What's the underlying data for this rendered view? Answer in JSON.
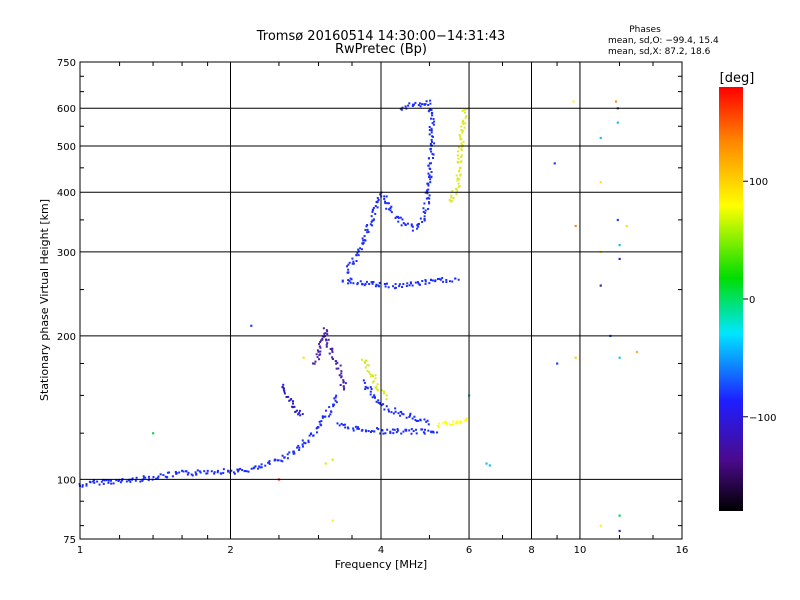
{
  "chart_data": {
    "type": "scatter",
    "title": "Tromsø 20160514 14:30:00−14:31:43",
    "subtitle": "RwPretec (Bp)",
    "xlabel": "Frequency [MHz]",
    "ylabel": "Stationary phase Virtual Height [km]",
    "x_scale": "log",
    "y_scale": "log",
    "xlim": [
      1,
      16
    ],
    "ylim": [
      75,
      750
    ],
    "x_ticks": [
      1,
      2,
      4,
      6,
      8,
      10,
      16
    ],
    "x_tick_labels": [
      "1",
      "2",
      "4",
      "6",
      "8",
      "10",
      "16"
    ],
    "y_ticks": [
      75,
      100,
      200,
      300,
      400,
      500,
      600,
      750
    ],
    "y_tick_labels": [
      "75",
      "100",
      "200",
      "300",
      "400",
      "500",
      "600",
      "750"
    ],
    "grid": true,
    "phases": {
      "title": "Phases",
      "line_o": "mean, sd,O: −99.4, 15.4",
      "line_x": "mean, sd,X:  87.2, 18.6"
    },
    "colorbar": {
      "label": "[deg]",
      "range": [
        -180,
        180
      ],
      "ticks": [
        100,
        0,
        -100
      ],
      "tick_labels": [
        "100",
        "0",
        "−100"
      ]
    },
    "traces": [
      {
        "color": "#1a2cff",
        "points": [
          [
            1.0,
            97
          ],
          [
            1.05,
            98
          ],
          [
            1.1,
            99
          ],
          [
            1.2,
            99
          ],
          [
            1.3,
            100
          ],
          [
            1.4,
            101
          ],
          [
            1.5,
            102
          ],
          [
            1.6,
            103
          ],
          [
            1.7,
            103
          ],
          [
            1.8,
            104
          ],
          [
            1.9,
            104
          ],
          [
            2.0,
            104
          ],
          [
            2.1,
            104
          ],
          [
            2.2,
            105
          ],
          [
            2.3,
            106
          ],
          [
            2.4,
            108
          ],
          [
            2.5,
            110
          ],
          [
            2.6,
            112
          ],
          [
            2.7,
            115
          ],
          [
            2.8,
            119
          ],
          [
            2.9,
            123
          ],
          [
            3.0,
            128
          ],
          [
            3.05,
            132
          ],
          [
            3.1,
            136
          ],
          [
            3.2,
            142
          ],
          [
            3.3,
            150
          ]
        ]
      },
      {
        "color": "#2a1dcc",
        "points": [
          [
            2.55,
            158
          ],
          [
            2.6,
            150
          ],
          [
            2.65,
            145
          ],
          [
            2.7,
            140
          ],
          [
            2.75,
            137
          ],
          [
            2.8,
            136
          ]
        ]
      },
      {
        "color": "#4b22b0",
        "points": [
          [
            2.95,
            175
          ],
          [
            3.0,
            185
          ],
          [
            3.05,
            195
          ],
          [
            3.1,
            205
          ],
          [
            3.15,
            190
          ],
          [
            3.2,
            180
          ],
          [
            3.3,
            170
          ],
          [
            3.35,
            160
          ],
          [
            3.4,
            152
          ]
        ]
      },
      {
        "color": "#1a2cff",
        "points": [
          [
            3.3,
            130
          ],
          [
            3.5,
            128
          ],
          [
            3.8,
            127
          ],
          [
            4.0,
            126
          ],
          [
            4.3,
            126
          ],
          [
            4.6,
            126
          ],
          [
            4.9,
            126
          ],
          [
            5.2,
            127
          ]
        ]
      },
      {
        "color": "#ffff00",
        "points": [
          [
            5.2,
            130
          ],
          [
            5.4,
            131
          ],
          [
            5.6,
            131
          ],
          [
            5.8,
            132
          ],
          [
            5.95,
            134
          ]
        ]
      },
      {
        "color": "#1a2cff",
        "points": [
          [
            3.7,
            160
          ],
          [
            3.85,
            150
          ],
          [
            4.0,
            143
          ],
          [
            4.2,
            140
          ],
          [
            4.5,
            136
          ],
          [
            4.8,
            133
          ],
          [
            5.0,
            131
          ]
        ]
      },
      {
        "color": "#d8e82a",
        "points": [
          [
            3.7,
            180
          ],
          [
            3.8,
            168
          ],
          [
            3.9,
            160
          ],
          [
            4.0,
            152
          ],
          [
            4.1,
            148
          ]
        ]
      },
      {
        "color": "#1a2cff",
        "points": [
          [
            3.35,
            262
          ],
          [
            3.5,
            260
          ],
          [
            3.7,
            258
          ],
          [
            3.9,
            256
          ],
          [
            4.1,
            255
          ],
          [
            4.3,
            254
          ],
          [
            4.5,
            256
          ],
          [
            4.8,
            258
          ],
          [
            5.1,
            260
          ],
          [
            5.4,
            262
          ],
          [
            5.7,
            262
          ]
        ]
      },
      {
        "color": "#1a2cff",
        "points": [
          [
            3.4,
            270
          ],
          [
            3.55,
            290
          ],
          [
            3.7,
            320
          ],
          [
            3.85,
            355
          ],
          [
            3.95,
            385
          ],
          [
            4.05,
            395
          ],
          [
            4.15,
            370
          ],
          [
            4.3,
            355
          ],
          [
            4.5,
            340
          ],
          [
            4.7,
            335
          ],
          [
            4.9,
            355
          ],
          [
            5.0,
            420
          ],
          [
            5.05,
            500
          ],
          [
            5.05,
            580
          ],
          [
            5.0,
            620
          ]
        ]
      },
      {
        "color": "#1a2cff",
        "points": [
          [
            4.4,
            600
          ],
          [
            4.6,
            612
          ],
          [
            4.8,
            605
          ],
          [
            5.0,
            615
          ]
        ]
      },
      {
        "color": "#dde820",
        "points": [
          [
            5.5,
            380
          ],
          [
            5.6,
            395
          ],
          [
            5.7,
            420
          ],
          [
            5.75,
            470
          ],
          [
            5.8,
            520
          ],
          [
            5.85,
            560
          ],
          [
            5.9,
            600
          ]
        ]
      }
    ],
    "markers": [
      {
        "x": 1.4,
        "y": 125,
        "color": "#22cc55"
      },
      {
        "x": 2.2,
        "y": 210,
        "color": "#2244ff"
      },
      {
        "x": 2.5,
        "y": 100,
        "color": "#ff3322"
      },
      {
        "x": 2.8,
        "y": 180,
        "color": "#ffdd22"
      },
      {
        "x": 3.1,
        "y": 108,
        "color": "#dde820"
      },
      {
        "x": 3.2,
        "y": 110,
        "color": "#dde820"
      },
      {
        "x": 3.2,
        "y": 82,
        "color": "#ffee22"
      },
      {
        "x": 6.5,
        "y": 108,
        "color": "#22bbee"
      },
      {
        "x": 6.6,
        "y": 107,
        "color": "#22bbee"
      },
      {
        "x": 8.9,
        "y": 460,
        "color": "#2244ff"
      },
      {
        "x": 9.0,
        "y": 175,
        "color": "#2244ff"
      },
      {
        "x": 9.7,
        "y": 620,
        "color": "#ffee44"
      },
      {
        "x": 9.8,
        "y": 180,
        "color": "#ffcc22"
      },
      {
        "x": 9.8,
        "y": 340,
        "color": "#ff8822"
      },
      {
        "x": 11.0,
        "y": 520,
        "color": "#22bbee"
      },
      {
        "x": 11.0,
        "y": 420,
        "color": "#ffdd22"
      },
      {
        "x": 11.0,
        "y": 300,
        "color": "#ffee22"
      },
      {
        "x": 11.0,
        "y": 255,
        "color": "#4422aa"
      },
      {
        "x": 11.0,
        "y": 80,
        "color": "#ffee22"
      },
      {
        "x": 11.5,
        "y": 200,
        "color": "#2244ff"
      },
      {
        "x": 11.8,
        "y": 620,
        "color": "#ff8822"
      },
      {
        "x": 11.9,
        "y": 600,
        "color": "#2244ff"
      },
      {
        "x": 11.9,
        "y": 560,
        "color": "#22bbee"
      },
      {
        "x": 11.9,
        "y": 350,
        "color": "#2244ff"
      },
      {
        "x": 12.0,
        "y": 310,
        "color": "#22bbee"
      },
      {
        "x": 12.0,
        "y": 290,
        "color": "#4422aa"
      },
      {
        "x": 12.0,
        "y": 180,
        "color": "#22bbee"
      },
      {
        "x": 12.0,
        "y": 84,
        "color": "#22cc55"
      },
      {
        "x": 12.0,
        "y": 78,
        "color": "#4422aa"
      },
      {
        "x": 12.4,
        "y": 340,
        "color": "#ffdd22"
      },
      {
        "x": 13.0,
        "y": 185,
        "color": "#ffaa33"
      },
      {
        "x": 6.0,
        "y": 150,
        "color": "#22cc88"
      }
    ]
  }
}
